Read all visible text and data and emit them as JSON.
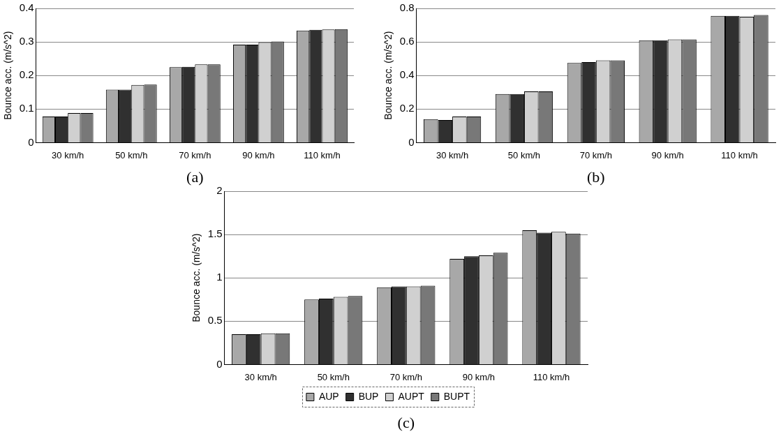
{
  "chart_data": [
    {
      "type": "bar",
      "ylabel": "Bounce acc. (m/s^2)",
      "categories": [
        "30 km/h",
        "50 km/h",
        "70 km/h",
        "90 km/h",
        "110 km/h"
      ],
      "series": [
        {
          "color": "#a8a8a8",
          "values": [
            0.078,
            0.158,
            0.225,
            0.292,
            0.334
          ]
        },
        {
          "color": "#303030",
          "values": [
            0.078,
            0.158,
            0.226,
            0.292,
            0.336
          ]
        },
        {
          "color": "#d0d0d0",
          "values": [
            0.088,
            0.172,
            0.233,
            0.299,
            0.337
          ]
        },
        {
          "color": "#787878",
          "values": [
            0.088,
            0.173,
            0.233,
            0.301,
            0.338
          ]
        }
      ],
      "ylim": [
        0,
        0.4
      ],
      "yticks": [
        0,
        0.1,
        0.2,
        0.3,
        0.4
      ],
      "grid": "y",
      "legend": false,
      "annotations": [
        "(a)"
      ]
    },
    {
      "type": "bar",
      "ylabel": "Bounce acc. (m/s^2)",
      "categories": [
        "30 km/h",
        "50 km/h",
        "70 km/h",
        "90 km/h",
        "110 km/h"
      ],
      "series": [
        {
          "color": "#a8a8a8",
          "values": [
            0.14,
            0.29,
            0.475,
            0.61,
            0.755
          ]
        },
        {
          "color": "#303030",
          "values": [
            0.135,
            0.29,
            0.48,
            0.61,
            0.755
          ]
        },
        {
          "color": "#d0d0d0",
          "values": [
            0.155,
            0.305,
            0.49,
            0.615,
            0.75
          ]
        },
        {
          "color": "#787878",
          "values": [
            0.155,
            0.305,
            0.49,
            0.615,
            0.76
          ]
        }
      ],
      "ylim": [
        0,
        0.8
      ],
      "yticks": [
        0,
        0.2,
        0.4,
        0.6,
        0.8
      ],
      "grid": "y",
      "legend": false,
      "annotations": [
        "(b)"
      ]
    },
    {
      "type": "bar",
      "ylabel": "Bounce acc. (m/s^2)",
      "categories": [
        "30 km/h",
        "50 km/h",
        "70 km/h",
        "90 km/h",
        "110 km/h"
      ],
      "series": [
        {
          "name": "AUP",
          "color": "#a8a8a8",
          "values": [
            0.35,
            0.75,
            0.89,
            1.22,
            1.55
          ]
        },
        {
          "name": "BUP",
          "color": "#303030",
          "values": [
            0.35,
            0.76,
            0.9,
            1.25,
            1.52
          ]
        },
        {
          "name": "AUPT",
          "color": "#d0d0d0",
          "values": [
            0.36,
            0.78,
            0.9,
            1.26,
            1.53
          ]
        },
        {
          "name": "BUPT",
          "color": "#787878",
          "values": [
            0.36,
            0.79,
            0.91,
            1.29,
            1.51
          ]
        }
      ],
      "ylim": [
        0,
        2
      ],
      "yticks": [
        0,
        0.5,
        1,
        1.5,
        2
      ],
      "grid": "y",
      "legend": "bottom",
      "annotations": [
        "(c)"
      ]
    }
  ]
}
